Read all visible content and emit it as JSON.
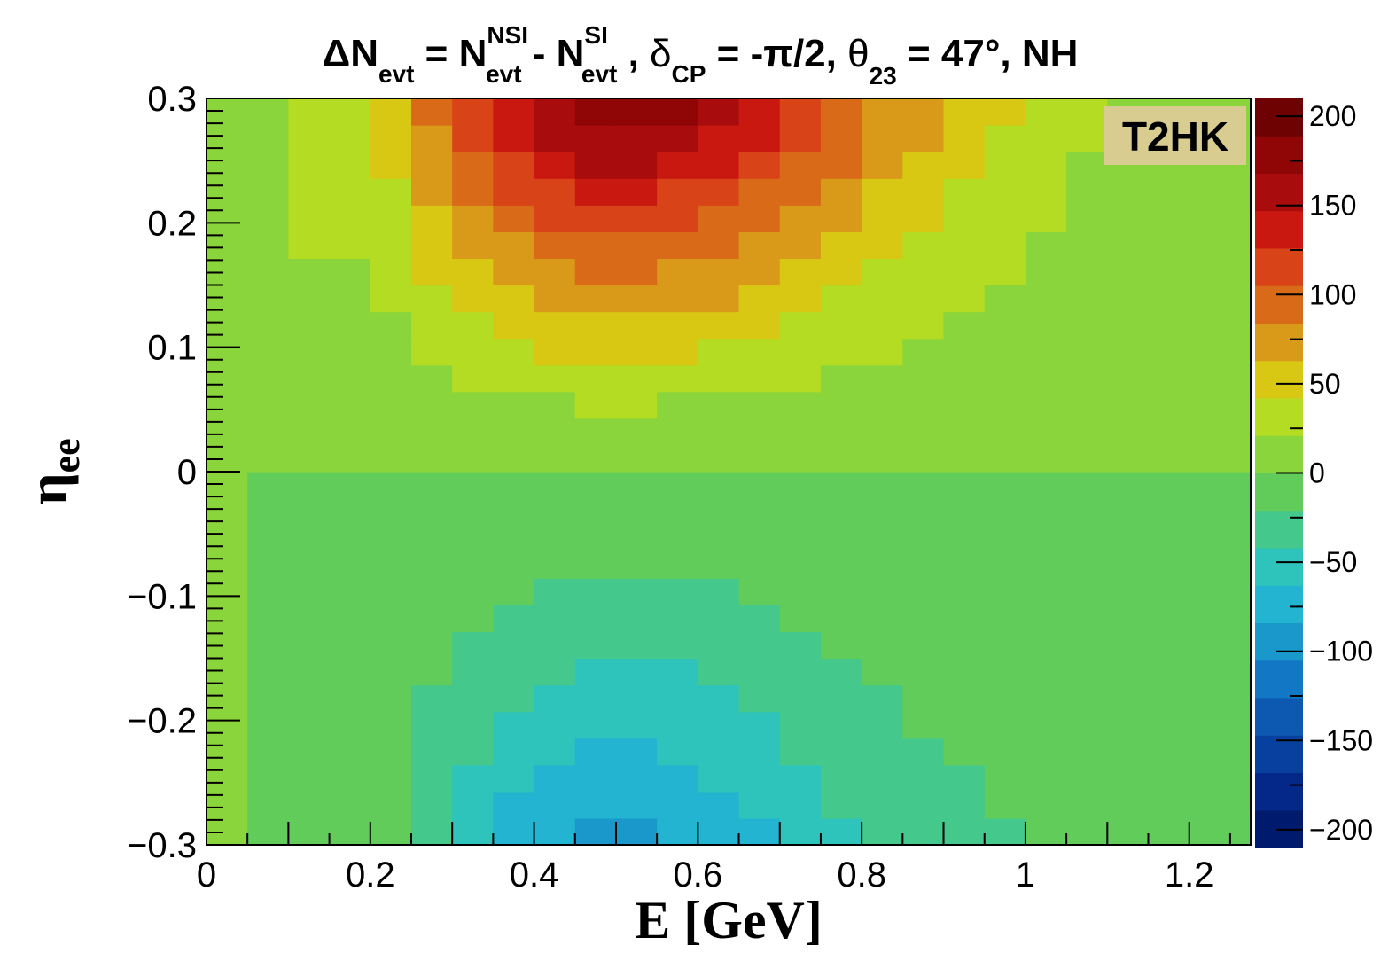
{
  "chart_data": {
    "type": "heatmap",
    "title": {
      "delta": "Δ",
      "n": "N",
      "evt": "evt",
      "eq1": " = ",
      "n2": "N",
      "evt2": "evt",
      "nsi": "NSI",
      "minus": " - ",
      "n3": "N",
      "evt3": "evt",
      "si": "SI",
      "sep": " ,  ",
      "delta_cp": "δ",
      "cp": "CP",
      "cp_val": " = -π/2,  ",
      "theta": "θ",
      "t23": "23",
      "theta_val": " = 47°, NH"
    },
    "xlabel": "E [GeV]",
    "ylabel_main": "η",
    "ylabel_sub": "ee",
    "label_box": "T2HK",
    "xlim": [
      0,
      1.275
    ],
    "ylim": [
      -0.3,
      0.3
    ],
    "zlim": [
      -210,
      210
    ],
    "x_ticks": [
      "0",
      "0.2",
      "0.4",
      "0.6",
      "0.8",
      "1",
      "1.2"
    ],
    "x_tick_values": [
      0,
      0.2,
      0.4,
      0.6,
      0.8,
      1.0,
      1.2
    ],
    "y_ticks": [
      "0.3",
      "0.2",
      "0.1",
      "0",
      "−0.1",
      "−0.2",
      "−0.3"
    ],
    "y_tick_values": [
      0.3,
      0.2,
      0.1,
      0,
      -0.1,
      -0.2,
      -0.3
    ],
    "z_ticks": [
      "200",
      "150",
      "100",
      "50",
      "0",
      "−50",
      "−100",
      "−150",
      "−200"
    ],
    "z_tick_values": [
      200,
      150,
      100,
      50,
      0,
      -50,
      -100,
      -150,
      -200
    ],
    "palette": [
      "#001a6e",
      "#03288a",
      "#0840a0",
      "#0d58b0",
      "#1278c6",
      "#1a98cc",
      "#22b4d0",
      "#2ec4bc",
      "#44c88c",
      "#62cc5a",
      "#8ad43c",
      "#b4dc22",
      "#d8c814",
      "#d89a18",
      "#d86a18",
      "#d84418",
      "#c81810",
      "#a80c0c",
      "#900606",
      "#6e0202"
    ],
    "x_bins": [
      0.0,
      0.05,
      0.1,
      0.15,
      0.2,
      0.25,
      0.3,
      0.35,
      0.4,
      0.45,
      0.5,
      0.55,
      0.6,
      0.65,
      0.7,
      0.75,
      0.8,
      0.85,
      0.9,
      0.95,
      1.0,
      1.05,
      1.1,
      1.15,
      1.2,
      1.25,
      1.275
    ],
    "energy_profile": {
      "centers": [
        0,
        0.05,
        0.1,
        0.15,
        0.2,
        0.25,
        0.3,
        0.35,
        0.4,
        0.45,
        0.5,
        0.55,
        0.6,
        0.65,
        0.7,
        0.75,
        0.8,
        0.85,
        0.9,
        0.95,
        1.0,
        1.05,
        1.1,
        1.15,
        1.2,
        1.25
      ],
      "positive_amplitude": [
        0,
        0,
        25,
        25,
        25,
        40,
        65,
        80,
        95,
        105,
        110,
        105,
        100,
        90,
        80,
        70,
        55,
        45,
        38,
        30,
        25,
        18,
        12,
        8,
        5,
        3
      ],
      "negative_amplitude": [
        0,
        0,
        15,
        15,
        12,
        25,
        40,
        55,
        70,
        78,
        80,
        78,
        72,
        65,
        55,
        45,
        35,
        30,
        25,
        22,
        18,
        14,
        10,
        8,
        4,
        2
      ]
    }
  }
}
